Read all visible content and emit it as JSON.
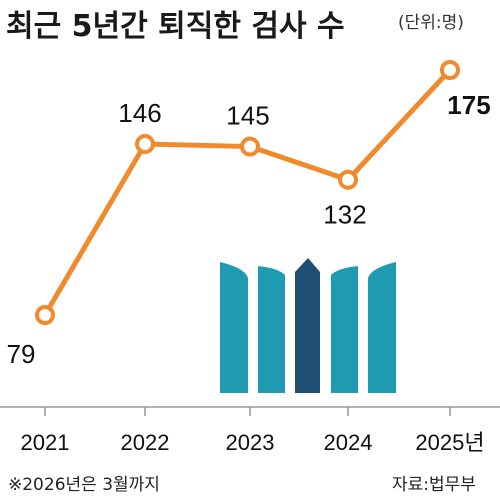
{
  "chart_data": {
    "type": "line",
    "title": "최근 5년간 퇴직한 검사 수",
    "unit_label": "(단위:명)",
    "categories": [
      "2021",
      "2022",
      "2023",
      "2024",
      "2025년"
    ],
    "values": [
      79,
      146,
      145,
      132,
      175
    ],
    "data_labels": [
      "79",
      "146",
      "145",
      "132",
      "175"
    ],
    "ylim": [
      40,
      190
    ],
    "grid": false,
    "line_color": "#F08A2C",
    "note": "※2026년은 3월까지",
    "source": "자료:법무부"
  },
  "colors": {
    "logo_teal": "#1E9BB0",
    "logo_navy": "#1E4E73",
    "axis": "#999999"
  },
  "icons": {
    "logo": "prosecution-service-logo-icon"
  }
}
